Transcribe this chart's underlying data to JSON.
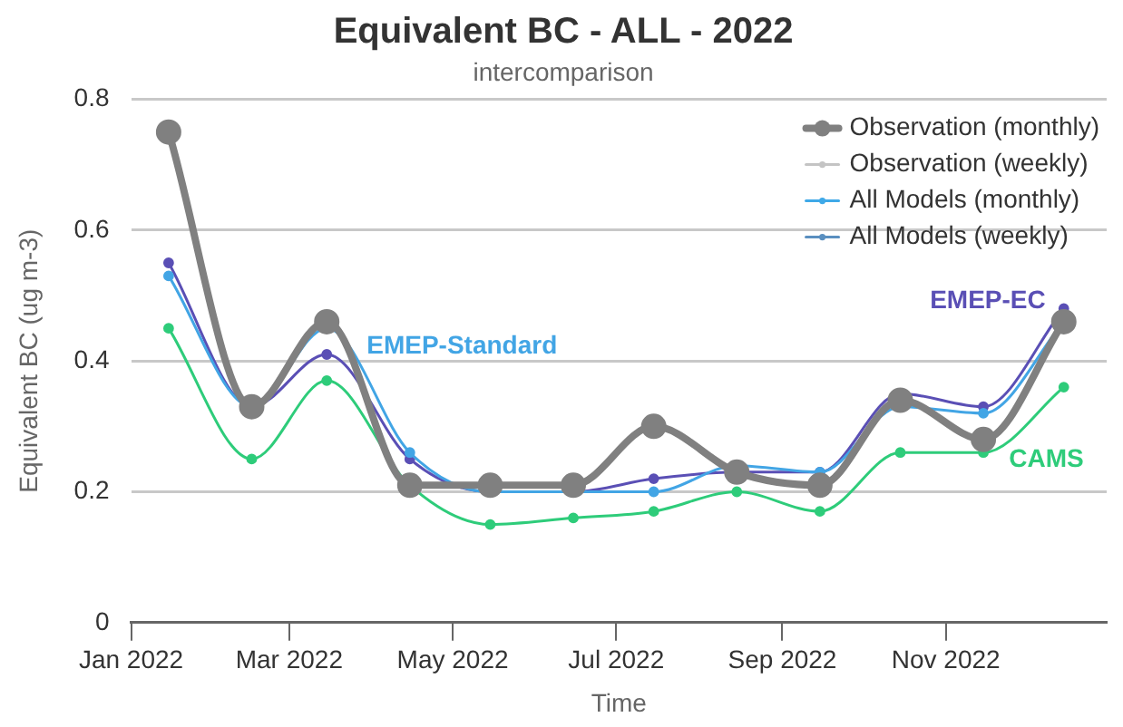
{
  "chart_data": {
    "type": "line",
    "title": "Equivalent BC - ALL - 2022",
    "subtitle": "intercomparison",
    "xlabel": "Time",
    "ylabel": "Equivalent BC (ug m-3)",
    "x": [
      "2022-01-15",
      "2022-02-15",
      "2022-03-15",
      "2022-04-15",
      "2022-05-15",
      "2022-06-15",
      "2022-07-15",
      "2022-08-15",
      "2022-09-15",
      "2022-10-15",
      "2022-11-15",
      "2022-12-15"
    ],
    "xlim": [
      "2022-01-01",
      "2022-12-31"
    ],
    "xticks": [
      {
        "value": "2022-01-01",
        "label": "Jan 2022"
      },
      {
        "value": "2022-03-01",
        "label": "Mar 2022"
      },
      {
        "value": "2022-05-01",
        "label": "May 2022"
      },
      {
        "value": "2022-07-01",
        "label": "Jul 2022"
      },
      {
        "value": "2022-09-01",
        "label": "Sep 2022"
      },
      {
        "value": "2022-11-01",
        "label": "Nov 2022"
      }
    ],
    "ylim": [
      0,
      0.8
    ],
    "yticks": [
      0,
      0.2,
      0.4,
      0.6,
      0.8
    ],
    "grid": "y",
    "legend": "top right",
    "marker": "circle",
    "series": [
      {
        "name": "Observation (monthly)",
        "color": "#808080",
        "values": [
          0.75,
          0.33,
          0.46,
          0.21,
          0.21,
          0.21,
          0.3,
          0.23,
          0.21,
          0.34,
          0.28,
          0.46
        ]
      },
      {
        "name": "Observation (weekly)",
        "color": "#c4c4c4",
        "values": [
          null,
          null,
          null,
          null,
          null,
          null,
          null,
          null,
          null,
          null,
          null,
          null
        ]
      },
      {
        "name": "All Models (monthly)",
        "color": "#3fa9e8",
        "values": [
          null,
          null,
          null,
          null,
          null,
          null,
          null,
          null,
          null,
          null,
          null,
          null
        ]
      },
      {
        "name": "All Models (weekly)",
        "color": "#5a8fc0",
        "values": [
          null,
          null,
          null,
          null,
          null,
          null,
          null,
          null,
          null,
          null,
          null,
          null
        ]
      },
      {
        "name": "EMEP-Standard",
        "color": "#42a5e5",
        "values": [
          0.53,
          0.33,
          0.45,
          0.26,
          0.2,
          0.2,
          0.2,
          0.24,
          0.23,
          0.33,
          0.32,
          0.46
        ]
      },
      {
        "name": "EMEP-EC",
        "color": "#5a4fb5",
        "values": [
          0.55,
          0.33,
          0.41,
          0.25,
          0.2,
          0.2,
          0.22,
          0.23,
          0.23,
          0.35,
          0.33,
          0.48
        ]
      },
      {
        "name": "CAMS",
        "color": "#2ecc7a",
        "values": [
          0.45,
          0.25,
          0.37,
          0.21,
          0.15,
          0.16,
          0.17,
          0.2,
          0.17,
          0.26,
          0.26,
          0.36
        ]
      }
    ]
  }
}
